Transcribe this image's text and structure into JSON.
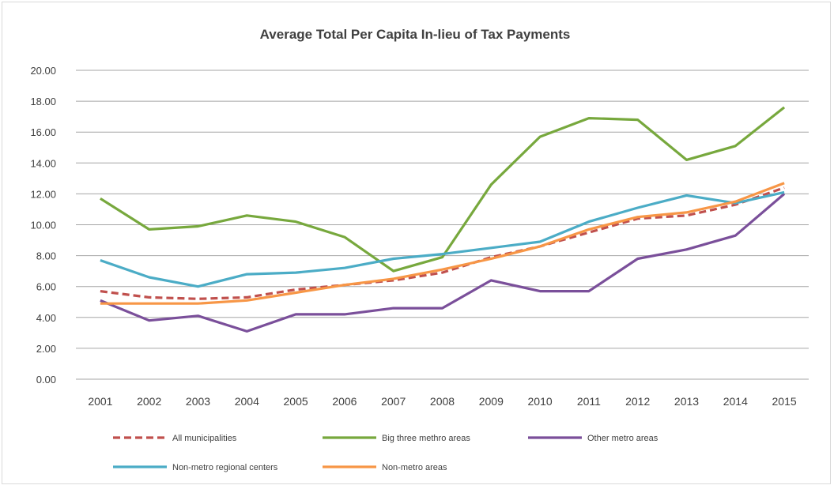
{
  "chart_data": {
    "type": "line",
    "title": "Average Total Per Capita In-lieu of Tax Payments",
    "xlabel": "",
    "ylabel": "",
    "x": [
      "2001",
      "2002",
      "2003",
      "2004",
      "2005",
      "2006",
      "2007",
      "2008",
      "2009",
      "2010",
      "2011",
      "2012",
      "2013",
      "2014",
      "2015"
    ],
    "ylim": [
      0,
      20
    ],
    "yticks": [
      "0.00",
      "2.00",
      "4.00",
      "6.00",
      "8.00",
      "10.00",
      "12.00",
      "14.00",
      "16.00",
      "18.00",
      "20.00"
    ],
    "grid": true,
    "legend_position": "bottom",
    "series": [
      {
        "name": "All municipalities",
        "color": "#c0504d",
        "dashed": true,
        "values": [
          5.7,
          5.3,
          5.2,
          5.3,
          5.8,
          6.1,
          6.4,
          6.9,
          7.9,
          8.6,
          9.5,
          10.4,
          10.6,
          11.3,
          12.4
        ]
      },
      {
        "name": "Big three methro areas",
        "color": "#77a83d",
        "dashed": false,
        "values": [
          11.7,
          9.7,
          9.9,
          10.6,
          10.2,
          9.2,
          7.0,
          7.9,
          12.6,
          15.7,
          16.9,
          16.8,
          14.2,
          15.1,
          17.6
        ]
      },
      {
        "name": "Other metro areas",
        "color": "#7a4f9a",
        "dashed": false,
        "values": [
          5.1,
          3.8,
          4.1,
          3.1,
          4.2,
          4.2,
          4.6,
          4.6,
          6.4,
          5.7,
          5.7,
          7.8,
          8.4,
          9.3,
          12.0
        ]
      },
      {
        "name": "Non-metro regional centers",
        "color": "#4bacc6",
        "dashed": false,
        "values": [
          7.7,
          6.6,
          6.0,
          6.8,
          6.9,
          7.2,
          7.8,
          8.1,
          8.5,
          8.9,
          10.2,
          11.1,
          11.9,
          11.4,
          12.1
        ]
      },
      {
        "name": "Non-metro areas",
        "color": "#f79646",
        "dashed": false,
        "values": [
          4.9,
          4.9,
          4.9,
          5.1,
          5.6,
          6.1,
          6.5,
          7.1,
          7.8,
          8.6,
          9.7,
          10.5,
          10.8,
          11.5,
          12.7
        ]
      }
    ]
  }
}
